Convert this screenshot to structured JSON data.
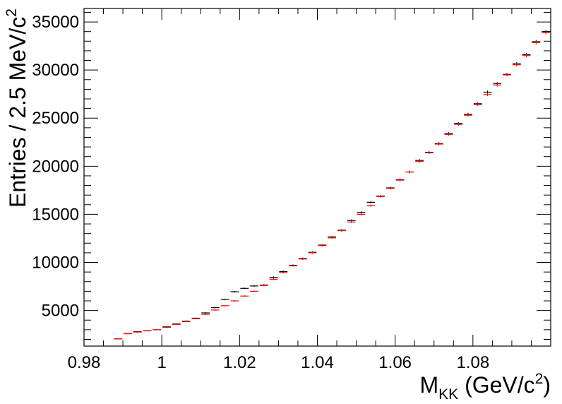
{
  "chart_data": {
    "type": "scatter",
    "title": "",
    "xlabel": {
      "base": "M",
      "sub": "KK",
      "unit_pre": " (GeV/c",
      "unit_sup": "2",
      "unit_post": ")"
    },
    "ylabel": {
      "text": "Entries / 2.5 MeV/c",
      "sup": "2"
    },
    "xlim": [
      0.98,
      1.1
    ],
    "ylim": [
      1300,
      36400
    ],
    "x_ticks": [
      "0.98",
      "1",
      "1.02",
      "1.04",
      "1.06",
      "1.08"
    ],
    "y_ticks": [
      "5000",
      "10000",
      "15000",
      "20000",
      "25000",
      "30000",
      "35000"
    ],
    "bin_width": 0.0025,
    "series": [
      {
        "color": "#000000",
        "x": [
          0.98875,
          0.99125,
          0.99375,
          0.99625,
          0.99875,
          1.00125,
          1.00375,
          1.00625,
          1.00875,
          1.01125,
          1.01375,
          1.01625,
          1.01875,
          1.02125,
          1.02375,
          1.02625,
          1.02875,
          1.03125,
          1.03375,
          1.03625,
          1.03875,
          1.04125,
          1.04375,
          1.04625,
          1.04875,
          1.05125,
          1.05375,
          1.05625,
          1.05875,
          1.06125,
          1.06375,
          1.06625,
          1.06875,
          1.07125,
          1.07375,
          1.07625,
          1.07875,
          1.08125,
          1.08375,
          1.08625,
          1.08875,
          1.09125,
          1.09375,
          1.09625,
          1.09875
        ],
        "y": [
          2050,
          2600,
          2800,
          2900,
          3000,
          3300,
          3600,
          3900,
          4200,
          4750,
          5300,
          6150,
          6950,
          7300,
          7550,
          7650,
          8450,
          9050,
          9700,
          10400,
          11050,
          11800,
          12650,
          13350,
          14350,
          15200,
          16250,
          16900,
          17750,
          18600,
          19400,
          20600,
          21450,
          22350,
          23400,
          24450,
          25400,
          26500,
          27700,
          28600,
          29550,
          30650,
          31600,
          32950,
          34000
        ]
      },
      {
        "color": "#ff0000",
        "x": [
          0.98875,
          0.99125,
          0.99375,
          0.99625,
          0.99875,
          1.00125,
          1.00375,
          1.00625,
          1.00875,
          1.01125,
          1.01375,
          1.01625,
          1.01875,
          1.02125,
          1.02375,
          1.02625,
          1.02875,
          1.03125,
          1.03375,
          1.03625,
          1.03875,
          1.04125,
          1.04375,
          1.04625,
          1.04875,
          1.05125,
          1.05375,
          1.05625,
          1.05875,
          1.06125,
          1.06375,
          1.06625,
          1.06875,
          1.07125,
          1.07375,
          1.07625,
          1.07875,
          1.08125,
          1.08375,
          1.08625,
          1.08875,
          1.09125,
          1.09375,
          1.09625,
          1.09875
        ],
        "y": [
          2050,
          2580,
          2760,
          2880,
          3000,
          3250,
          3550,
          3850,
          4150,
          4600,
          5050,
          5500,
          6000,
          6500,
          7000,
          7600,
          8250,
          8950,
          9650,
          10350,
          11000,
          11750,
          12550,
          13300,
          14200,
          15000,
          15900,
          16850,
          17700,
          18550,
          19400,
          20500,
          21400,
          22300,
          23300,
          24350,
          25300,
          26400,
          27450,
          28450,
          29500,
          30550,
          31500,
          32850,
          33900
        ]
      }
    ]
  }
}
